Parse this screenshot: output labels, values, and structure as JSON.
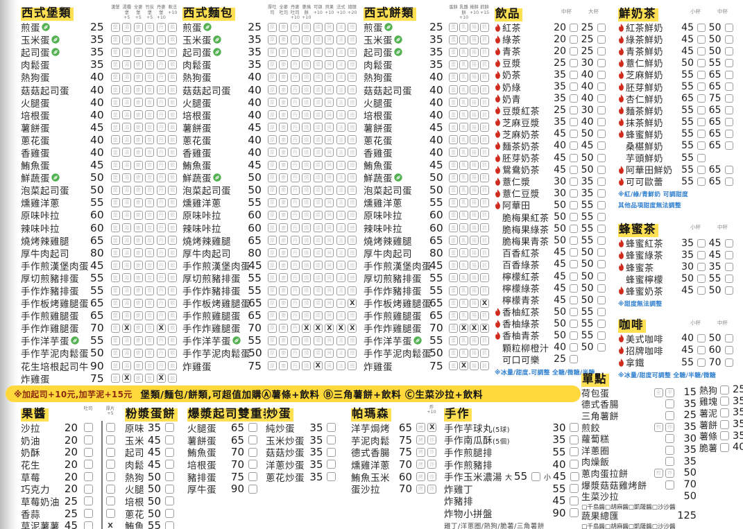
{
  "palette": {
    "highlight_yellow": "#ffe052",
    "banner_yellow": "#ffd93b",
    "flame_red": "#cf2a1c",
    "leaf_green": "#53b152",
    "note_blue": "#2f7fd0",
    "text": "#2b2b2b"
  },
  "icons": {
    "flame": "flame-icon (hot drink available)",
    "leaf": "leaf-icon (vegetarian)",
    "checkbox": "order tick box"
  },
  "banner": {
    "left": "※加起司+10元,加芋泥+15元",
    "right": "堡類/麵包/餅類,可超值加購Ⓐ薯條+飲料 Ⓑ三角薯餅+飲料 Ⓒ生菜沙拉+飲料"
  },
  "shared_egg_items": [
    {
      "name": "煎蛋",
      "price": 25,
      "leaf": true
    },
    {
      "name": "玉米蛋",
      "price": 35,
      "leaf": true
    },
    {
      "name": "起司蛋",
      "price": 35,
      "leaf": true
    },
    {
      "name": "肉鬆蛋",
      "price": 35
    },
    {
      "name": "熱狗蛋",
      "price": 40
    },
    {
      "name": "菇菇起司蛋",
      "price": 40
    },
    {
      "name": "火腿蛋",
      "price": 40
    },
    {
      "name": "培根蛋",
      "price": 40
    },
    {
      "name": "薯餅蛋",
      "price": 45
    },
    {
      "name": "蔥花蛋",
      "price": 40
    },
    {
      "name": "香雞蛋",
      "price": 40
    },
    {
      "name": "鮪魚蛋",
      "price": 45
    },
    {
      "name": "鮮蔬蛋",
      "price": 50,
      "leaf": true
    },
    {
      "name": "泡菜起司蛋",
      "price": 50
    },
    {
      "name": "燻雞洋蔥",
      "price": 55
    },
    {
      "name": "原味咔拉",
      "price": 60
    },
    {
      "name": "辣味咔拉",
      "price": 60
    },
    {
      "name": "燒烤辣雞腿",
      "price": 65
    },
    {
      "name": "厚牛肉起司",
      "price": 80
    },
    {
      "name": "手作煎漢堡肉蛋",
      "price": 45
    },
    {
      "name": "厚切煎豬排蛋",
      "price": 55
    },
    {
      "name": "手作炸豬排蛋",
      "price": 55
    },
    {
      "name": "手作板烤雞腿蛋",
      "price": 65
    },
    {
      "name": "手作煎雞腿蛋",
      "price": 65
    },
    {
      "name": "手作炸雞腿蛋",
      "price": 70
    },
    {
      "name": "手作洋芋蛋",
      "price": 55,
      "leaf": true
    },
    {
      "name": "手作芋泥肉鬆蛋",
      "price": 50
    },
    {
      "name": "炸雞蛋",
      "price": 75
    }
  ],
  "egg_columns": [
    {
      "id": "col-burger",
      "title": "西式堡類",
      "box_labels": [
        "漢堡",
        "湯種堡",
        "全麥堡",
        "竹炭堡",
        "丹麥堡",
        "軟法"
      ],
      "box_fees": [
        "",
        "+5",
        "+5",
        "+5",
        "+10",
        "+10"
      ],
      "box_glyphs": [
        "堡",
        "湯",
        "麥",
        "炭",
        "丹",
        "軟"
      ],
      "extra_item": {
        "name": "花生培根起司牛",
        "price": 90,
        "before": "炸雞蛋"
      },
      "x_marks": {
        "手作炸雞腿蛋": [
          1,
          4
        ],
        "炸雞蛋": [
          1,
          4
        ]
      }
    },
    {
      "id": "col-bread",
      "title": "西式麵包",
      "box_labels": [
        "厚吐司",
        "全麥吐司",
        "丹麥吐司",
        "蔥燒餅",
        "可頌",
        "貝果",
        "法式",
        "總匯"
      ],
      "box_fees": [
        "",
        "",
        "+10",
        "+10",
        "+10",
        "+10",
        "+10",
        "+20"
      ],
      "box_glyphs": [
        "厚",
        "麥",
        "丹",
        "燒",
        "頌",
        "貝",
        "法",
        "總"
      ],
      "x_marks": {
        "手作板烤雞腿蛋": [
          7
        ],
        "手作炸雞腿蛋": [
          3,
          4,
          5,
          6,
          7
        ],
        "炸雞蛋": [
          4
        ]
      }
    },
    {
      "id": "col-pancake",
      "title": "西式餅類",
      "box_labels": [
        "蛋餅",
        "乳酪餅",
        "捲餅",
        "抓餅"
      ],
      "box_fees": [
        "",
        "+10",
        "+10",
        "+15"
      ],
      "box_glyphs": [
        "蛋",
        "乳",
        "捲",
        "抓"
      ],
      "x_marks": {
        "手作板烤雞腿蛋": [
          3
        ],
        "手作炸雞腿蛋": [
          1,
          2,
          3
        ],
        "炸雞蛋": [
          1
        ]
      }
    }
  ],
  "drinks": {
    "id": "col-drinks",
    "title": "飲品",
    "size_headers": [
      "中杯",
      "大杯"
    ],
    "items": [
      {
        "name": "紅茶",
        "p1": 20,
        "p2": 25,
        "hot": true
      },
      {
        "name": "綠茶",
        "p1": 20,
        "p2": 25,
        "hot": true
      },
      {
        "name": "青茶",
        "p1": 20,
        "p2": 25,
        "hot": true
      },
      {
        "name": "豆漿",
        "p1": 25,
        "p2": 30,
        "hot": true
      },
      {
        "name": "奶茶",
        "p1": 35,
        "p2": 40,
        "hot": true
      },
      {
        "name": "奶綠",
        "p1": 35,
        "p2": 40,
        "hot": true
      },
      {
        "name": "奶青",
        "p1": 35,
        "p2": 40,
        "hot": true
      },
      {
        "name": "豆漿紅茶",
        "p1": 25,
        "p2": 30,
        "hot": true
      },
      {
        "name": "芝麻豆漿",
        "p1": 35,
        "p2": 40,
        "hot": true
      },
      {
        "name": "芝麻奶茶",
        "p1": 45,
        "p2": 50,
        "hot": true
      },
      {
        "name": "麵茶奶茶",
        "p1": 40,
        "p2": 45,
        "hot": true
      },
      {
        "name": "胚芽奶茶",
        "p1": 45,
        "p2": 50,
        "hot": true
      },
      {
        "name": "鴛鴦奶茶",
        "p1": 45,
        "p2": 50,
        "hot": true
      },
      {
        "name": "薏仁漿",
        "p1": 30,
        "p2": 35,
        "hot": true
      },
      {
        "name": "薏仁豆漿",
        "p1": 30,
        "p2": 35,
        "hot": true
      },
      {
        "name": "阿華田",
        "p1": 50,
        "p2": 55,
        "hot": true
      },
      {
        "name": "脆梅果紅茶",
        "p1": 50,
        "p2": 55
      },
      {
        "name": "脆梅果綠茶",
        "p1": 50,
        "p2": 55
      },
      {
        "name": "脆梅果青茶",
        "p1": 50,
        "p2": 55
      },
      {
        "name": "百香紅茶",
        "p1": 45,
        "p2": 50
      },
      {
        "name": "百香綠茶",
        "p1": 45,
        "p2": 50
      },
      {
        "name": "檸檬紅茶",
        "p1": 45,
        "p2": 50
      },
      {
        "name": "檸檬綠茶",
        "p1": 45,
        "p2": 50
      },
      {
        "name": "檸檬青茶",
        "p1": 45,
        "p2": 50
      },
      {
        "name": "香柚紅茶",
        "p1": 50,
        "p2": 55,
        "hot": true
      },
      {
        "name": "香柚綠茶",
        "p1": 50,
        "p2": 55,
        "hot": true
      },
      {
        "name": "香柚青茶",
        "p1": 50,
        "p2": 55,
        "hot": true
      },
      {
        "name": "顆粒柳橙汁",
        "p1": 40,
        "p2": 50
      },
      {
        "name": "可口可樂",
        "p1": 25
      }
    ],
    "note_lines": [
      "※冰量/甜度.可調整 全糖/微糖/半糖"
    ]
  },
  "milk_series": {
    "title": "鮮奶茶",
    "size_headers": [
      "小杯",
      "中杯"
    ],
    "items": [
      {
        "name": "紅茶鮮奶",
        "p1": 45,
        "p2": 50,
        "hot": true
      },
      {
        "name": "綠茶鮮奶",
        "p1": 45,
        "p2": 50,
        "hot": true
      },
      {
        "name": "青茶鮮奶",
        "p1": 45,
        "p2": 50,
        "hot": true
      },
      {
        "name": "薏仁鮮奶",
        "p1": 50,
        "p2": 55,
        "hot": true
      },
      {
        "name": "芝麻鮮奶",
        "p1": 55,
        "p2": 65,
        "hot": true
      },
      {
        "name": "胚芽鮮奶",
        "p1": 55,
        "p2": 65,
        "hot": true
      },
      {
        "name": "杏仁鮮奶",
        "p1": 65,
        "p2": 75,
        "hot": true
      },
      {
        "name": "麵茶鮮奶",
        "p1": 55,
        "p2": 65,
        "hot": true
      },
      {
        "name": "抹茶鮮奶",
        "p1": 55,
        "p2": 65,
        "hot": true
      },
      {
        "name": "蜂蜜鮮奶",
        "p1": 55,
        "p2": 65,
        "hot": true
      },
      {
        "name": "桑椹鮮奶",
        "p1": 55,
        "p2": 65
      },
      {
        "name": "芋頭鮮奶",
        "p1": 55
      },
      {
        "name": "阿華田鮮奶",
        "p1": 55,
        "p2": 65,
        "hot": true
      },
      {
        "name": "可可歐蕾",
        "p1": 55,
        "p2": 65,
        "hot": true
      }
    ],
    "note_lines": [
      "※紅/綠/青鮮奶 可調甜度",
      "其他品項甜度無法調整"
    ]
  },
  "honey_tea": {
    "title": "蜂蜜茶",
    "size_headers": [
      "小杯",
      "中杯"
    ],
    "items": [
      {
        "name": "蜂蜜紅茶",
        "p1": 35,
        "p2": 45,
        "hot": true
      },
      {
        "name": "蜂蜜綠茶",
        "p1": 35,
        "p2": 45,
        "hot": true
      },
      {
        "name": "蜂蜜茶",
        "p1": 30,
        "p2": 35,
        "hot": true
      },
      {
        "name": "蜂蜜檸檬",
        "p1": 50,
        "p2": 55
      },
      {
        "name": "蜂蜜奶茶",
        "p1": 45,
        "p2": 50,
        "hot": true
      }
    ],
    "note_lines": [
      "※甜度無法調整"
    ]
  },
  "coffee": {
    "title": "咖啡",
    "size_headers": [
      "小杯",
      "中杯"
    ],
    "items": [
      {
        "name": "美式咖啡",
        "p1": 40,
        "p2": 50,
        "hot": true
      },
      {
        "name": "招牌咖啡",
        "p1": 45,
        "p2": 60,
        "hot": true
      },
      {
        "name": "拿鐵",
        "p1": 55,
        "p2": 70,
        "hot": true
      }
    ],
    "note_lines": [
      "※冰量/甜度可調整 全糖/半糖/微糖"
    ]
  },
  "jam": {
    "title": "果醬",
    "col_headers": [
      [
        "吐司",
        ""
      ],
      [
        "厚片",
        "+5"
      ]
    ],
    "items": [
      {
        "name": "沙拉",
        "price": 20
      },
      {
        "name": "奶油",
        "price": 20
      },
      {
        "name": "奶酥",
        "price": 20
      },
      {
        "name": "花生",
        "price": 20
      },
      {
        "name": "草莓",
        "price": 20
      },
      {
        "name": "巧克力",
        "price": 20
      },
      {
        "name": "草莓奶油",
        "price": 25
      },
      {
        "name": "香蒜",
        "price": 25
      },
      {
        "name": "草泥薯薯",
        "price": 45,
        "thick_x": true
      }
    ]
  },
  "batter": {
    "title": "粉漿蛋餅",
    "items": [
      {
        "name": "原味",
        "price": 35
      },
      {
        "name": "玉米",
        "price": 45
      },
      {
        "name": "起司",
        "price": 45
      },
      {
        "name": "肉鬆",
        "price": 45
      },
      {
        "name": "熱狗",
        "price": 50
      },
      {
        "name": "火腿",
        "price": 50
      },
      {
        "name": "培根",
        "price": 50
      },
      {
        "name": "蔥花",
        "price": 50
      },
      {
        "name": "鮪魚",
        "price": 55
      }
    ]
  },
  "cheese_duo": {
    "title": "爆漿起司雙重奏",
    "items": [
      {
        "name": "火腿蛋",
        "price": 65
      },
      {
        "name": "薯餅蛋",
        "price": 65
      },
      {
        "name": "鮪魚蛋",
        "price": 70
      },
      {
        "name": "培根蛋",
        "price": 70
      },
      {
        "name": "豬排蛋",
        "price": 75
      },
      {
        "name": "厚牛蛋",
        "price": 90
      }
    ]
  },
  "scrambled": {
    "title": "炒蛋",
    "items": [
      {
        "name": "純炒蛋",
        "price": 35
      },
      {
        "name": "玉米炒蛋",
        "price": 35
      },
      {
        "name": "菇菇炒蛋",
        "price": 35
      },
      {
        "name": "洋蔥炒蛋",
        "price": 35
      },
      {
        "name": "蔥花炒蛋",
        "price": 35
      }
    ]
  },
  "parmesan": {
    "title": "帕瑪森",
    "fry_fee_header": "炸 +10",
    "box_glyphs": [
      "烤",
      "炸"
    ],
    "items": [
      {
        "name": "洋芋焗烤",
        "price": 65,
        "fry_x": true
      },
      {
        "name": "芋泥肉鬆",
        "price": 75
      },
      {
        "name": "德式香腸",
        "price": 75
      },
      {
        "name": "燻雞洋蔥",
        "price": 70
      },
      {
        "name": "鮪魚玉米",
        "price": 60
      },
      {
        "name": "蛋沙拉",
        "price": 70
      }
    ]
  },
  "handmade": {
    "title": "手作",
    "items": [
      {
        "name": "手作芋球丸",
        "qty": "(5球)",
        "price": 30
      },
      {
        "name": "手作南瓜酥",
        "qty": "(5個)",
        "price": 35
      },
      {
        "name": "手作煎腿排",
        "price": 55
      },
      {
        "name": "手作煎豬排",
        "price": 40
      },
      {
        "name": "手作玉米濃湯",
        "sizes": [
          {
            "label": "大",
            "price": 55
          },
          {
            "label": "小",
            "price": 45
          }
        ]
      },
      {
        "name": "炸雞丁",
        "price": 55
      },
      {
        "name": "炸豬排",
        "price": 45
      },
      {
        "name": "炸物小拼盤",
        "price": 90
      }
    ],
    "note": "雞丁/洋蔥圈/熱狗/脆薯/三角薯餅"
  },
  "single": {
    "title": "單點",
    "left": [
      {
        "name": "荷包蛋",
        "boxes": [
          "全",
          "半"
        ],
        "price": 15
      },
      {
        "name": "德式香腸",
        "boxes": [
          ""
        ],
        "price": 35
      },
      {
        "name": "三角薯餅",
        "boxes": [
          ""
        ],
        "price": 25
      },
      {
        "name": "煎餃",
        "boxes": [
          "煎",
          "炸"
        ],
        "price": 35
      },
      {
        "name": "蘿蔔糕",
        "boxes": [
          ""
        ],
        "price": 30
      },
      {
        "name": "洋蔥圈",
        "boxes": [
          ""
        ],
        "price": 35
      },
      {
        "name": "肉燥飯",
        "boxes": [
          ""
        ],
        "price": 35
      },
      {
        "name": "蔥肉蛋拉餅",
        "boxes": [
          "煎",
          "炸"
        ],
        "price": 50
      },
      {
        "name": "爆漿菇菇雞烤餅",
        "boxes": [
          ""
        ],
        "price": 70
      },
      {
        "name": "生菜沙拉",
        "boxes": [],
        "price": 50,
        "sauces": "□千島醬□胡麻醬□凱薩醬□沙沙醬"
      },
      {
        "name": "蔬果總匯",
        "boxes": [],
        "price": 125,
        "sauces": "□千島醬□胡麻醬□凱薩醬□沙沙醬"
      }
    ],
    "right": [
      {
        "name": "熱狗",
        "price": 25
      },
      {
        "name": "雞塊",
        "price": 35
      },
      {
        "name": "薯泥",
        "price": 35
      },
      {
        "name": "薯餅",
        "price": 35
      },
      {
        "name": "薯條",
        "price": 35
      },
      {
        "name": "脆薯",
        "price": 40
      }
    ]
  }
}
